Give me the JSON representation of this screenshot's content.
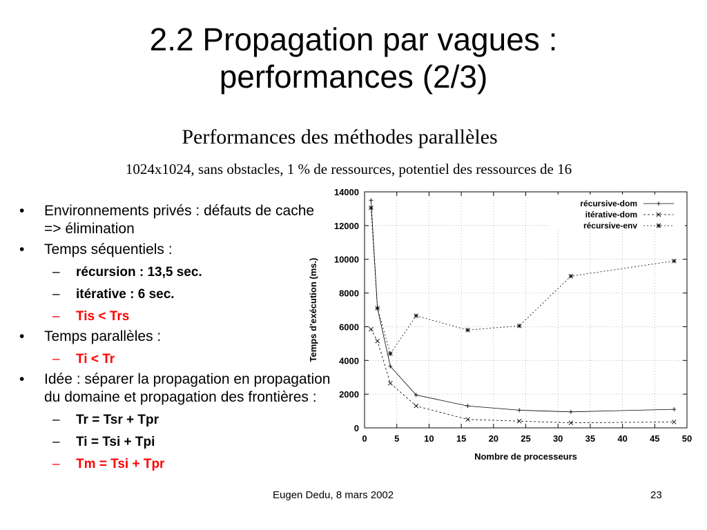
{
  "slide": {
    "title_line1": "2.2 Propagation par vagues :",
    "title_line2": "performances (2/3)",
    "subtitle": "Performances des méthodes parallèles",
    "caption": "1024x1024, sans obstacles, 1 % de ressources, potentiel des ressources de 16",
    "footer_author": "Eugen Dedu, 8 mars 2002",
    "page_number": "23"
  },
  "bullets": [
    {
      "level": 1,
      "text": "Environnements privés : défauts de cache  =>  élimination"
    },
    {
      "level": 1,
      "text": "Temps séquentiels :"
    },
    {
      "level": 2,
      "text": "récursion : 13,5 sec."
    },
    {
      "level": 2,
      "text": "itérative : 6 sec."
    },
    {
      "level": 2,
      "text": "Tis < Trs",
      "color": "#ff0000"
    },
    {
      "level": 1,
      "text": "Temps parallèles :"
    },
    {
      "level": 2,
      "text": "Ti < Tr",
      "color": "#ff0000"
    },
    {
      "level": 1,
      "text": "Idée : séparer la propagation en propagation du domaine et propagation des frontières :"
    },
    {
      "level": 2,
      "text": "Tr = Tsr + Tpr"
    },
    {
      "level": 2,
      "text": "Ti = Tsi + Tpi"
    },
    {
      "level": 2,
      "text": "Tm = Tsi + Tpr",
      "color": "#ff0000"
    }
  ],
  "chart_data": {
    "type": "line",
    "xlabel": "Nombre de processeurs",
    "ylabel": "Temps d'exécution (ms.)",
    "xlim": [
      0,
      50
    ],
    "ylim": [
      0,
      14000
    ],
    "xticks": [
      0,
      5,
      10,
      15,
      20,
      25,
      30,
      35,
      40,
      45,
      50
    ],
    "yticks": [
      0,
      2000,
      4000,
      6000,
      8000,
      10000,
      12000,
      14000
    ],
    "grid": true,
    "legend_position": "top-right",
    "series": [
      {
        "name": "récursive-dom",
        "marker": "+",
        "dash": "none",
        "x": [
          1,
          2,
          4,
          8,
          16,
          24,
          32,
          48
        ],
        "y": [
          13500,
          7100,
          3650,
          1950,
          1300,
          1050,
          950,
          1100
        ]
      },
      {
        "name": "itérative-dom",
        "marker": "x",
        "dash": "3,3",
        "x": [
          1,
          2,
          4,
          8,
          16,
          24,
          32,
          48
        ],
        "y": [
          5850,
          5150,
          2650,
          1300,
          500,
          400,
          300,
          350
        ]
      },
      {
        "name": "récursive-env",
        "marker": "*",
        "dash": "2,3",
        "x": [
          1,
          2,
          4,
          8,
          16,
          24,
          32,
          48
        ],
        "y": [
          13050,
          7100,
          4400,
          6650,
          5800,
          6050,
          9000,
          9900
        ]
      }
    ]
  }
}
